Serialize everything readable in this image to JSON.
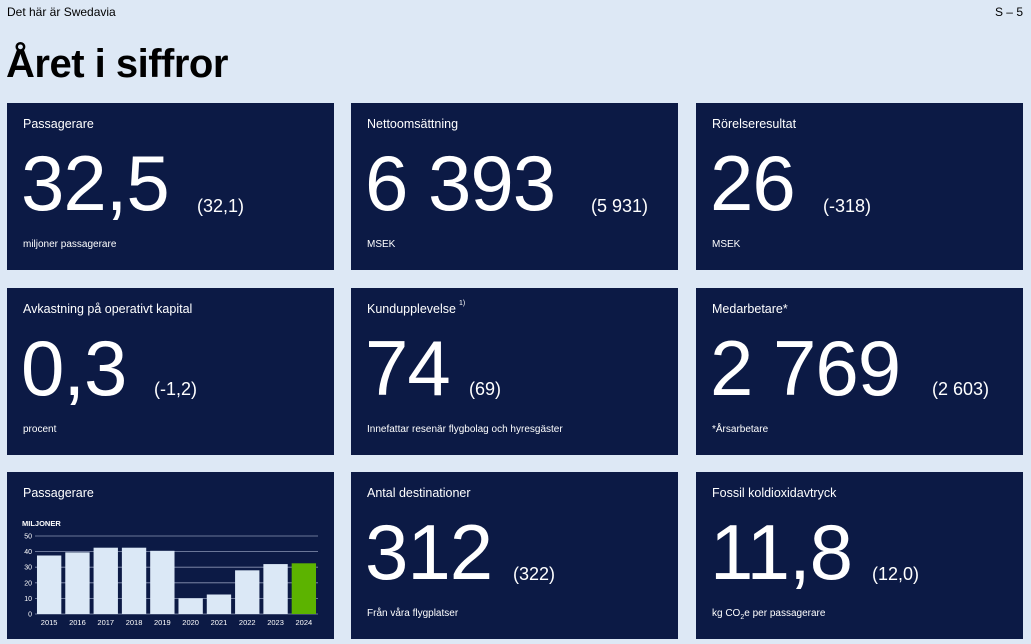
{
  "header": {
    "left": "Det här är Swedavia",
    "right": "S – 5"
  },
  "title": "Året i siffror",
  "cards": [
    {
      "label": "Passagerare",
      "value": "32,5",
      "prev": "(32,1)",
      "unit": "miljoner passagerare"
    },
    {
      "label": "Nettoomsättning",
      "value": "6 393",
      "prev": "(5 931)",
      "unit": "MSEK"
    },
    {
      "label": "Rörelseresultat",
      "value": "26",
      "prev": "(-318)",
      "unit": "MSEK"
    },
    {
      "label": "Avkastning på operativt kapital",
      "value": "0,3",
      "prev": "(-1,2)",
      "unit": "procent"
    },
    {
      "label": "Kundupplevelse",
      "label_sup": "1)",
      "value": "74",
      "prev": "(69)",
      "unit": "Innefattar resenär flygbolag och hyresgäster"
    },
    {
      "label": "Medarbetare*",
      "value": "2 769",
      "prev": "(2 603)",
      "unit": "*Årsarbetare"
    },
    {
      "label": "Antal destinationer",
      "value": "312",
      "prev": "(322)",
      "unit": "Från våra flygplatser"
    },
    {
      "label": "Fossil koldioxidavtryck",
      "value": "11,8",
      "prev": "(12,0)",
      "unit_pre": "kg CO",
      "unit_sub": "2",
      "unit_post": "e per passagerare"
    }
  ],
  "chart_card": {
    "label": "Passagerare"
  },
  "chart_data": {
    "type": "bar",
    "ylabel": "MILJONER",
    "categories": [
      "2015",
      "2016",
      "2017",
      "2018",
      "2019",
      "2020",
      "2021",
      "2022",
      "2023",
      "2024"
    ],
    "values": [
      37.5,
      39.5,
      42.5,
      42.5,
      40.5,
      10,
      12.5,
      28,
      32,
      32.5
    ],
    "ylim": [
      0,
      50
    ],
    "yticks": [
      0,
      10,
      20,
      30,
      40,
      50
    ],
    "bar_color": "#dbe8f6",
    "highlight_color": "#5cb300",
    "highlight_index": 9
  }
}
